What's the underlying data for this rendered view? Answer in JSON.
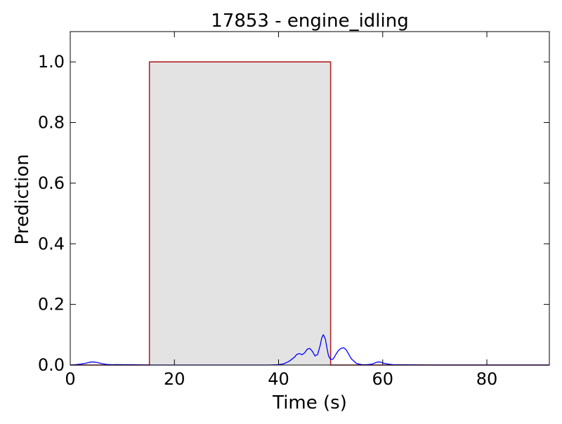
{
  "chart_data": {
    "type": "line",
    "title": "17853 - engine_idling",
    "xlabel": "Time (s)",
    "ylabel": "Prediction",
    "xlim": [
      0,
      92
    ],
    "ylim": [
      0,
      1.1
    ],
    "x_ticks": [
      "0",
      "20",
      "40",
      "60",
      "80"
    ],
    "x_tick_values": [
      0,
      20,
      40,
      60,
      80
    ],
    "y_ticks": [
      "0.0",
      "0.2",
      "0.4",
      "0.6",
      "0.8",
      "1.0"
    ],
    "y_tick_values": [
      0,
      0.2,
      0.4,
      0.6,
      0.8,
      1.0
    ],
    "grid": false,
    "legend": "none",
    "series": [
      {
        "role": "ground_truth",
        "style": "step",
        "color": "#b22222",
        "fill": "#e3e3e3",
        "x": [
          0,
          15.2,
          15.2,
          50.0,
          50.0,
          92
        ],
        "y": [
          0,
          0,
          1.0,
          1.0,
          0,
          0
        ]
      },
      {
        "role": "prediction",
        "style": "line",
        "color": "#0000ff",
        "x": [
          0,
          1,
          2,
          3,
          3.5,
          4,
          4.5,
          5,
          5.5,
          6,
          7,
          8,
          9,
          10,
          12,
          15,
          20,
          30,
          38,
          40,
          41,
          42,
          43,
          43.5,
          44,
          44.5,
          45,
          45.5,
          46,
          46.5,
          47,
          47.5,
          48,
          48.3,
          48.6,
          49,
          49.3,
          49.6,
          50,
          50.5,
          51,
          51.5,
          52,
          52.5,
          53,
          53.5,
          54,
          55,
          56,
          57,
          58,
          58.5,
          59,
          59.5,
          60,
          61,
          62,
          70,
          80,
          92
        ],
        "y": [
          0,
          0.001,
          0.003,
          0.006,
          0.008,
          0.01,
          0.01,
          0.009,
          0.007,
          0.005,
          0.002,
          0.001,
          0.0015,
          0.001,
          0.001,
          0,
          0,
          0,
          0,
          0.001,
          0.004,
          0.012,
          0.025,
          0.035,
          0.038,
          0.034,
          0.04,
          0.052,
          0.055,
          0.045,
          0.03,
          0.035,
          0.065,
          0.09,
          0.1,
          0.085,
          0.055,
          0.03,
          0.018,
          0.02,
          0.035,
          0.048,
          0.055,
          0.057,
          0.05,
          0.035,
          0.02,
          0.005,
          0.001,
          0.001,
          0.003,
          0.007,
          0.01,
          0.01,
          0.007,
          0.003,
          0.001,
          0,
          0,
          0
        ]
      }
    ]
  }
}
